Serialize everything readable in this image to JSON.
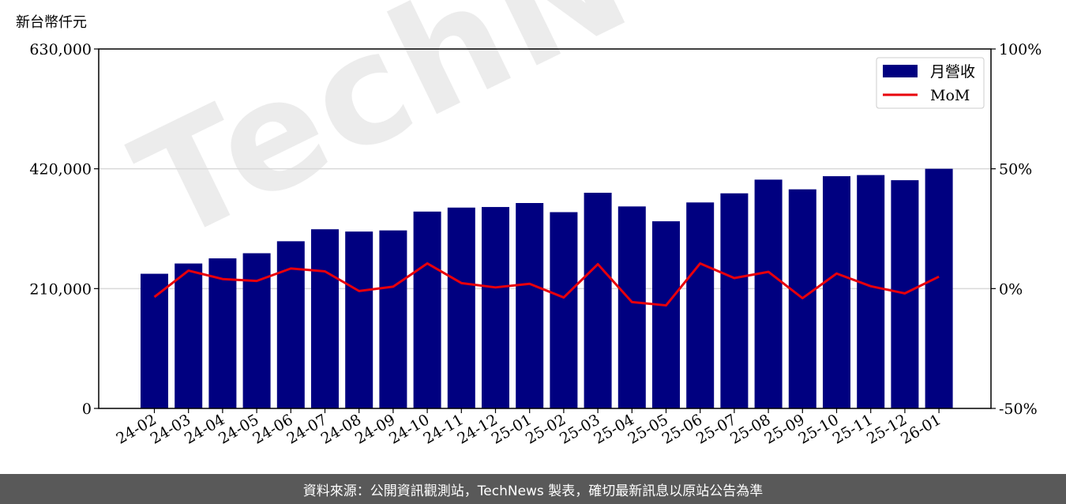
{
  "unit_label": "新台幣仟元",
  "footer_text": "資料來源：公開資訊觀測站，TechNews 製表，確切最新訊息以原站公告為準",
  "watermark_text": "TechNews",
  "chart_data": {
    "type": "bar",
    "categories": [
      "24-02",
      "24-03",
      "24-04",
      "24-05",
      "24-06",
      "24-07",
      "24-08",
      "24-09",
      "24-10",
      "24-11",
      "24-12",
      "25-01",
      "25-02",
      "25-03",
      "25-04",
      "25-05",
      "25-06",
      "25-07",
      "25-08",
      "25-09",
      "25-10",
      "25-11",
      "25-12",
      "26-01"
    ],
    "series": [
      {
        "name": "月營收",
        "axis": "left",
        "color": "#000080",
        "values": [
          236000,
          254000,
          263000,
          272000,
          293000,
          314000,
          310000,
          312000,
          345000,
          352000,
          353000,
          360000,
          344000,
          378000,
          354000,
          328000,
          361000,
          377000,
          401000,
          384000,
          407000,
          409000,
          400000,
          420000
        ]
      },
      {
        "name": "MoM",
        "axis": "right",
        "color": "#e8000b",
        "values": [
          -3.5,
          7.5,
          4.0,
          3.2,
          8.4,
          7.2,
          -1.0,
          0.8,
          10.5,
          2.3,
          0.5,
          2.0,
          -3.7,
          10.2,
          -5.6,
          -7.0,
          10.5,
          4.4,
          7.0,
          -4.0,
          6.3,
          1.0,
          -2.0,
          5.0
        ]
      }
    ],
    "y_left": {
      "ylim": [
        0,
        630000
      ],
      "ticks": [
        "0",
        "210,000",
        "420,000",
        "630,000"
      ],
      "tick_values": [
        0,
        210000,
        420000,
        630000
      ]
    },
    "y_right": {
      "ylim": [
        -50,
        100
      ],
      "ticks": [
        "-50%",
        "0%",
        "50%",
        "100%"
      ],
      "tick_values": [
        -50,
        0,
        50,
        100
      ]
    },
    "grid": "horizontal",
    "legend": {
      "placement": "top-right",
      "entries": [
        "月營收",
        "MoM"
      ]
    }
  }
}
